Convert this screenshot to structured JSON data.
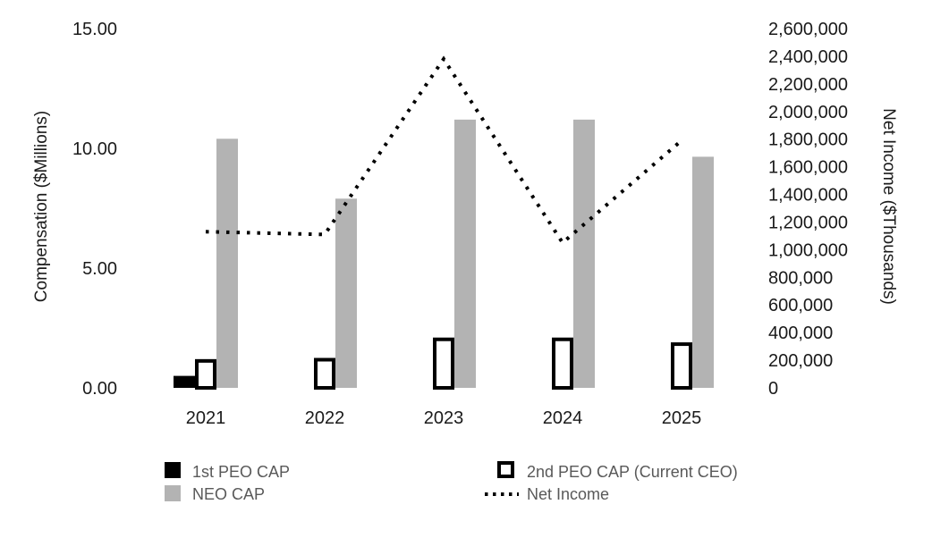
{
  "chart_data": {
    "type": "bar",
    "categories": [
      "2021",
      "2022",
      "2023",
      "2024",
      "2025"
    ],
    "ylabel": "Compensation ($Millions)",
    "y2label": "Net Income ($Thousands)",
    "ylim": [
      0,
      15
    ],
    "y2lim": [
      0,
      2600000
    ],
    "y_ticks": [
      "0.00",
      "5.00",
      "10.00",
      "15.00"
    ],
    "y2_ticks": [
      "0",
      "200,000",
      "400,000",
      "600,000",
      "800,000",
      "1,000,000",
      "1,200,000",
      "1,400,000",
      "1,600,000",
      "1,800,000",
      "2,000,000",
      "2,200,000",
      "2,400,000",
      "2,600,000"
    ],
    "grid": false,
    "legend_position": "bottom",
    "series": [
      {
        "name": "1st PEO CAP",
        "type": "bar",
        "axis": "left",
        "style": "solid-black",
        "color": "#000000",
        "values": [
          0.5,
          null,
          null,
          null,
          null
        ]
      },
      {
        "name": "2nd PEO CAP (Current CEO)",
        "type": "bar",
        "axis": "left",
        "style": "outlined",
        "color": "#000000",
        "values": [
          1.2,
          1.25,
          2.1,
          2.1,
          1.9
        ]
      },
      {
        "name": "NEO CAP",
        "type": "bar",
        "axis": "left",
        "style": "solid-gray",
        "color": "#b3b3b3",
        "values": [
          10.4,
          7.9,
          11.2,
          11.2,
          9.65
        ]
      },
      {
        "name": "Net Income",
        "type": "line",
        "axis": "right",
        "style": "dotted",
        "color": "#000000",
        "values": [
          1130000,
          1110000,
          2380000,
          1050000,
          1790000
        ]
      }
    ]
  }
}
